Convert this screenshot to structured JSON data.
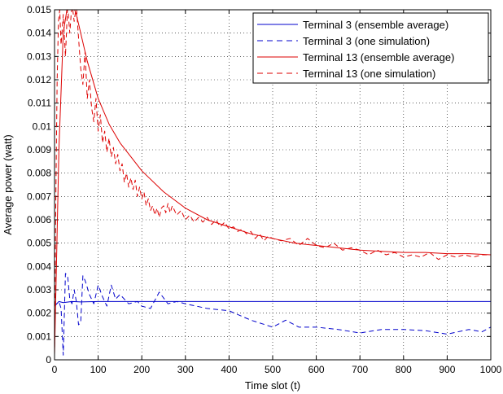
{
  "chart_data": {
    "type": "line",
    "xlabel": "Time slot (t)",
    "ylabel": "Average power (watt)",
    "xlim": [
      0,
      1000
    ],
    "ylim": [
      0,
      0.015
    ],
    "x_ticks": [
      "0",
      "100",
      "200",
      "300",
      "400",
      "500",
      "600",
      "700",
      "800",
      "900",
      "1000"
    ],
    "y_ticks": [
      "0",
      "0.001",
      "0.002",
      "0.003",
      "0.004",
      "0.005",
      "0.006",
      "0.007",
      "0.008",
      "0.009",
      "0.01",
      "0.011",
      "0.012",
      "0.013",
      "0.014",
      "0.015"
    ],
    "grid": true,
    "legend_position": "top-right",
    "series": [
      {
        "name": "Terminal 3 (ensemble average)",
        "color": "#0000cc",
        "style": "solid",
        "points": [
          [
            0,
            0.0023
          ],
          [
            5,
            0.0024
          ],
          [
            10,
            0.0025
          ],
          [
            20,
            0.00245
          ],
          [
            40,
            0.0025
          ],
          [
            60,
            0.00248
          ],
          [
            100,
            0.0025
          ],
          [
            200,
            0.0025
          ],
          [
            400,
            0.0025
          ],
          [
            600,
            0.0025
          ],
          [
            800,
            0.0025
          ],
          [
            1000,
            0.0025
          ]
        ]
      },
      {
        "name": "Terminal 3 (one simulation)",
        "color": "#0000cc",
        "style": "dashed",
        "points": [
          [
            0,
            0.0023
          ],
          [
            5,
            0.0024
          ],
          [
            10,
            0.0025
          ],
          [
            15,
            0.0022
          ],
          [
            20,
            0.0002
          ],
          [
            25,
            0.0037
          ],
          [
            30,
            0.0036
          ],
          [
            35,
            0.0026
          ],
          [
            40,
            0.0024
          ],
          [
            45,
            0.003
          ],
          [
            50,
            0.0025
          ],
          [
            55,
            0.0015
          ],
          [
            60,
            0.0016
          ],
          [
            65,
            0.0036
          ],
          [
            70,
            0.0034
          ],
          [
            80,
            0.0028
          ],
          [
            90,
            0.0024
          ],
          [
            100,
            0.0032
          ],
          [
            110,
            0.0027
          ],
          [
            120,
            0.0023
          ],
          [
            130,
            0.0032
          ],
          [
            140,
            0.0026
          ],
          [
            150,
            0.0028
          ],
          [
            170,
            0.0024
          ],
          [
            190,
            0.0025
          ],
          [
            200,
            0.0023
          ],
          [
            220,
            0.0022
          ],
          [
            240,
            0.0029
          ],
          [
            260,
            0.0024
          ],
          [
            280,
            0.0025
          ],
          [
            300,
            0.0024
          ],
          [
            350,
            0.0022
          ],
          [
            400,
            0.0021
          ],
          [
            450,
            0.0017
          ],
          [
            500,
            0.0014
          ],
          [
            530,
            0.0017
          ],
          [
            560,
            0.0014
          ],
          [
            600,
            0.0014
          ],
          [
            650,
            0.0013
          ],
          [
            700,
            0.00115
          ],
          [
            750,
            0.0013
          ],
          [
            800,
            0.0013
          ],
          [
            850,
            0.00125
          ],
          [
            900,
            0.0011
          ],
          [
            950,
            0.0013
          ],
          [
            980,
            0.0012
          ],
          [
            1000,
            0.0014
          ]
        ]
      },
      {
        "name": "Terminal 13 (ensemble average)",
        "color": "#dd0000",
        "style": "solid",
        "points": [
          [
            0,
            0.0002
          ],
          [
            10,
            0.009
          ],
          [
            20,
            0.014
          ],
          [
            30,
            0.0152
          ],
          [
            40,
            0.0153
          ],
          [
            50,
            0.0148
          ],
          [
            75,
            0.0128
          ],
          [
            100,
            0.0112
          ],
          [
            125,
            0.0101
          ],
          [
            150,
            0.0093
          ],
          [
            175,
            0.0087
          ],
          [
            200,
            0.0081
          ],
          [
            250,
            0.0072
          ],
          [
            300,
            0.0065
          ],
          [
            350,
            0.006
          ],
          [
            400,
            0.0057
          ],
          [
            450,
            0.0054
          ],
          [
            500,
            0.0052
          ],
          [
            550,
            0.005
          ],
          [
            600,
            0.0049
          ],
          [
            650,
            0.0048
          ],
          [
            700,
            0.0047
          ],
          [
            750,
            0.00465
          ],
          [
            800,
            0.0046
          ],
          [
            850,
            0.0046
          ],
          [
            900,
            0.00455
          ],
          [
            950,
            0.00455
          ],
          [
            1000,
            0.0045
          ]
        ]
      },
      {
        "name": "Terminal 13 (one simulation)",
        "color": "#dd0000",
        "style": "dashed",
        "points": [
          [
            0,
            0.0002
          ],
          [
            3,
            0.007
          ],
          [
            6,
            0.012
          ],
          [
            9,
            0.0145
          ],
          [
            12,
            0.015
          ],
          [
            15,
            0.0135
          ],
          [
            20,
            0.0148
          ],
          [
            25,
            0.013
          ],
          [
            30,
            0.0152
          ],
          [
            35,
            0.014
          ],
          [
            40,
            0.0153
          ],
          [
            45,
            0.0145
          ],
          [
            50,
            0.0152
          ],
          [
            55,
            0.0138
          ],
          [
            60,
            0.0125
          ],
          [
            65,
            0.0118
          ],
          [
            70,
            0.0132
          ],
          [
            75,
            0.0112
          ],
          [
            80,
            0.012
          ],
          [
            85,
            0.0108
          ],
          [
            90,
            0.0102
          ],
          [
            95,
            0.0112
          ],
          [
            100,
            0.0098
          ],
          [
            105,
            0.0105
          ],
          [
            110,
            0.0093
          ],
          [
            115,
            0.0098
          ],
          [
            120,
            0.0089
          ],
          [
            125,
            0.0095
          ],
          [
            130,
            0.0087
          ],
          [
            135,
            0.0091
          ],
          [
            140,
            0.0084
          ],
          [
            145,
            0.0088
          ],
          [
            150,
            0.0081
          ],
          [
            155,
            0.0084
          ],
          [
            160,
            0.0076
          ],
          [
            165,
            0.008
          ],
          [
            170,
            0.0074
          ],
          [
            175,
            0.0078
          ],
          [
            180,
            0.0073
          ],
          [
            185,
            0.0077
          ],
          [
            190,
            0.007
          ],
          [
            195,
            0.0074
          ],
          [
            200,
            0.0069
          ],
          [
            205,
            0.0072
          ],
          [
            210,
            0.0066
          ],
          [
            215,
            0.0069
          ],
          [
            220,
            0.0064
          ],
          [
            225,
            0.0066
          ],
          [
            230,
            0.0062
          ],
          [
            235,
            0.0065
          ],
          [
            240,
            0.0061
          ],
          [
            245,
            0.0065
          ],
          [
            250,
            0.0066
          ],
          [
            255,
            0.0063
          ],
          [
            260,
            0.0067
          ],
          [
            265,
            0.0063
          ],
          [
            270,
            0.0066
          ],
          [
            280,
            0.0062
          ],
          [
            290,
            0.0064
          ],
          [
            300,
            0.006
          ],
          [
            310,
            0.0062
          ],
          [
            320,
            0.0059
          ],
          [
            330,
            0.0061
          ],
          [
            340,
            0.0059
          ],
          [
            350,
            0.0061
          ],
          [
            360,
            0.0058
          ],
          [
            370,
            0.006
          ],
          [
            380,
            0.0057
          ],
          [
            390,
            0.0059
          ],
          [
            400,
            0.0056
          ],
          [
            410,
            0.0057
          ],
          [
            420,
            0.0055
          ],
          [
            430,
            0.0056
          ],
          [
            440,
            0.0054
          ],
          [
            450,
            0.0055
          ],
          [
            460,
            0.0052
          ],
          [
            470,
            0.0054
          ],
          [
            480,
            0.0051
          ],
          [
            490,
            0.0053
          ],
          [
            500,
            0.0052
          ],
          [
            520,
            0.0051
          ],
          [
            540,
            0.0052
          ],
          [
            560,
            0.0049
          ],
          [
            580,
            0.0052
          ],
          [
            600,
            0.0049
          ],
          [
            620,
            0.0048
          ],
          [
            640,
            0.005
          ],
          [
            660,
            0.0047
          ],
          [
            680,
            0.0048
          ],
          [
            700,
            0.0047
          ],
          [
            720,
            0.0045
          ],
          [
            740,
            0.0047
          ],
          [
            760,
            0.0045
          ],
          [
            780,
            0.0046
          ],
          [
            800,
            0.0044
          ],
          [
            820,
            0.0045
          ],
          [
            840,
            0.0044
          ],
          [
            860,
            0.0046
          ],
          [
            880,
            0.0043
          ],
          [
            900,
            0.0045
          ],
          [
            920,
            0.0044
          ],
          [
            940,
            0.0045
          ],
          [
            960,
            0.0044
          ],
          [
            980,
            0.0045
          ],
          [
            1000,
            0.0045
          ]
        ]
      }
    ]
  }
}
